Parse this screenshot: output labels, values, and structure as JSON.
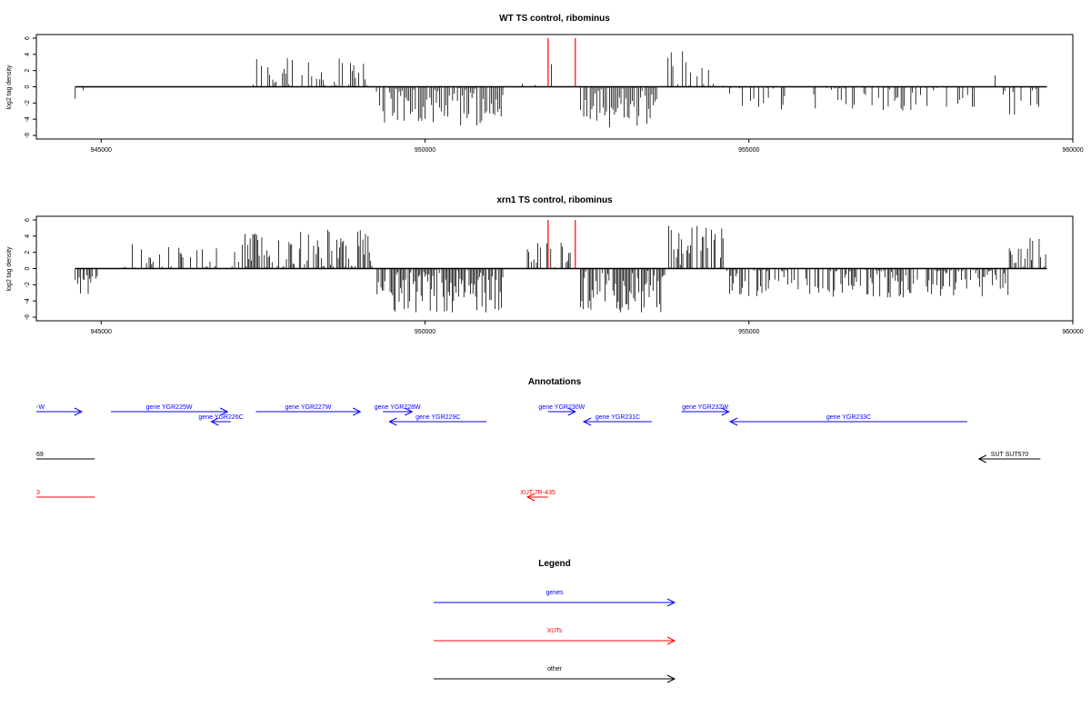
{
  "chart_data": [
    {
      "type": "bar",
      "title": "WT TS control, ribominus",
      "ylabel": "log2 tag density",
      "xlim": [
        944000,
        960000
      ],
      "ylim": [
        -6,
        6
      ],
      "xticks": [
        945000,
        950000,
        955000,
        960000
      ],
      "yticks": [
        6,
        4,
        2,
        0,
        -2,
        -4,
        -6
      ],
      "highlight_positions": [
        951900,
        952320
      ],
      "highlight_color": "#ff0000",
      "profile": {
        "start": 944600,
        "end": 959600,
        "step": 25,
        "segments": [
          {
            "from": 944600,
            "to": 944800,
            "mean": -1.0,
            "amp": 1.3,
            "density": 0.08
          },
          {
            "from": 946200,
            "to": 946700,
            "mean": 0.9,
            "amp": 0.2,
            "density": 0.06
          },
          {
            "from": 947300,
            "to": 949100,
            "mean": 1.3,
            "amp": 2.4,
            "density": 0.55
          },
          {
            "from": 949250,
            "to": 951200,
            "mean": -2.3,
            "amp": 2.6,
            "density": 0.9
          },
          {
            "from": 951500,
            "to": 952100,
            "mean": 0.6,
            "amp": 2.6,
            "density": 0.18
          },
          {
            "from": 952400,
            "to": 953600,
            "mean": -2.4,
            "amp": 2.6,
            "density": 0.9
          },
          {
            "from": 953750,
            "to": 954600,
            "mean": 1.6,
            "amp": 2.8,
            "density": 0.6
          },
          {
            "from": 954650,
            "to": 958500,
            "mean": -1.1,
            "amp": 1.9,
            "density": 0.45
          },
          {
            "from": 958600,
            "to": 958800,
            "mean": 1.2,
            "amp": 0.5,
            "density": 0.12
          },
          {
            "from": 958900,
            "to": 959600,
            "mean": -1.0,
            "amp": 3.0,
            "density": 0.35
          }
        ]
      }
    },
    {
      "type": "bar",
      "title": "xrn1 TS control, ribominus",
      "ylabel": "log2 tag density",
      "xlim": [
        944000,
        960000
      ],
      "ylim": [
        -6,
        6
      ],
      "xticks": [
        945000,
        950000,
        955000,
        960000
      ],
      "yticks": [
        6,
        4,
        2,
        0,
        -2,
        -4,
        -6
      ],
      "highlight_positions": [
        951900,
        952320
      ],
      "highlight_color": "#ff0000",
      "profile": {
        "start": 944600,
        "end": 959600,
        "step": 20,
        "segments": [
          {
            "from": 944600,
            "to": 944950,
            "mean": -1.5,
            "amp": 1.8,
            "density": 0.5
          },
          {
            "from": 945300,
            "to": 947200,
            "mean": 1.0,
            "amp": 2.0,
            "density": 0.3
          },
          {
            "from": 947200,
            "to": 949200,
            "mean": 1.8,
            "amp": 3.0,
            "density": 0.75
          },
          {
            "from": 949250,
            "to": 951200,
            "mean": -2.5,
            "amp": 3.0,
            "density": 0.95
          },
          {
            "from": 951500,
            "to": 952300,
            "mean": 1.0,
            "amp": 2.4,
            "density": 0.4
          },
          {
            "from": 952400,
            "to": 953700,
            "mean": -2.8,
            "amp": 3.2,
            "density": 0.95
          },
          {
            "from": 953750,
            "to": 954600,
            "mean": 2.0,
            "amp": 3.4,
            "density": 0.8
          },
          {
            "from": 954650,
            "to": 959000,
            "mean": -1.2,
            "amp": 2.4,
            "density": 0.7
          },
          {
            "from": 959000,
            "to": 959600,
            "mean": 1.5,
            "amp": 2.6,
            "density": 0.7
          }
        ]
      }
    }
  ],
  "annotations": {
    "title": "Annotations",
    "features": [
      {
        "label": "-W",
        "color": "#0000ff",
        "start": 944000,
        "end": 944700,
        "strand": "+",
        "row": 0
      },
      {
        "label": "gene YGR225W",
        "color": "#0000ff",
        "start": 945150,
        "end": 946950,
        "strand": "+",
        "row": 0
      },
      {
        "label": "gene YGR226C",
        "color": "#0000ff",
        "start": 946700,
        "end": 947000,
        "strand": "-",
        "row": 1
      },
      {
        "label": "gene YGR227W",
        "color": "#0000ff",
        "start": 947390,
        "end": 949000,
        "strand": "+",
        "row": 0
      },
      {
        "label": "gene YGR228W",
        "color": "#0000ff",
        "start": 949350,
        "end": 949800,
        "strand": "+",
        "row": 0
      },
      {
        "label": "gene YGR229C",
        "color": "#0000ff",
        "start": 949450,
        "end": 950950,
        "strand": "-",
        "row": 1
      },
      {
        "label": "gene YGR230W",
        "color": "#0000ff",
        "start": 951900,
        "end": 952320,
        "strand": "+",
        "row": 0
      },
      {
        "label": "gene YGR231C",
        "color": "#0000ff",
        "start": 952450,
        "end": 953500,
        "strand": "-",
        "row": 1
      },
      {
        "label": "gene YGR232W",
        "color": "#0000ff",
        "start": 953960,
        "end": 954690,
        "strand": "+",
        "row": 0
      },
      {
        "label": "gene YGR233C",
        "color": "#0000ff",
        "start": 954710,
        "end": 958370,
        "strand": "-",
        "row": 1
      },
      {
        "label": "69",
        "color": "#000000",
        "start": 944000,
        "end": 944900,
        "strand": "none",
        "row": 2
      },
      {
        "label": "SUT SUT570",
        "color": "#000000",
        "start": 958550,
        "end": 959500,
        "strand": "-",
        "row": 2
      },
      {
        "label": "3",
        "color": "#ff0000",
        "start": 944000,
        "end": 944900,
        "strand": "none",
        "row": 3
      },
      {
        "label": "XUT 7R-435",
        "color": "#ff0000",
        "start": 951580,
        "end": 951900,
        "strand": "-",
        "row": 3
      }
    ]
  },
  "legend": {
    "title": "Legend",
    "items": [
      {
        "label": "genes",
        "color": "#0000ff"
      },
      {
        "label": "XUTs",
        "color": "#ff0000"
      },
      {
        "label": "other",
        "color": "#000000"
      }
    ]
  }
}
